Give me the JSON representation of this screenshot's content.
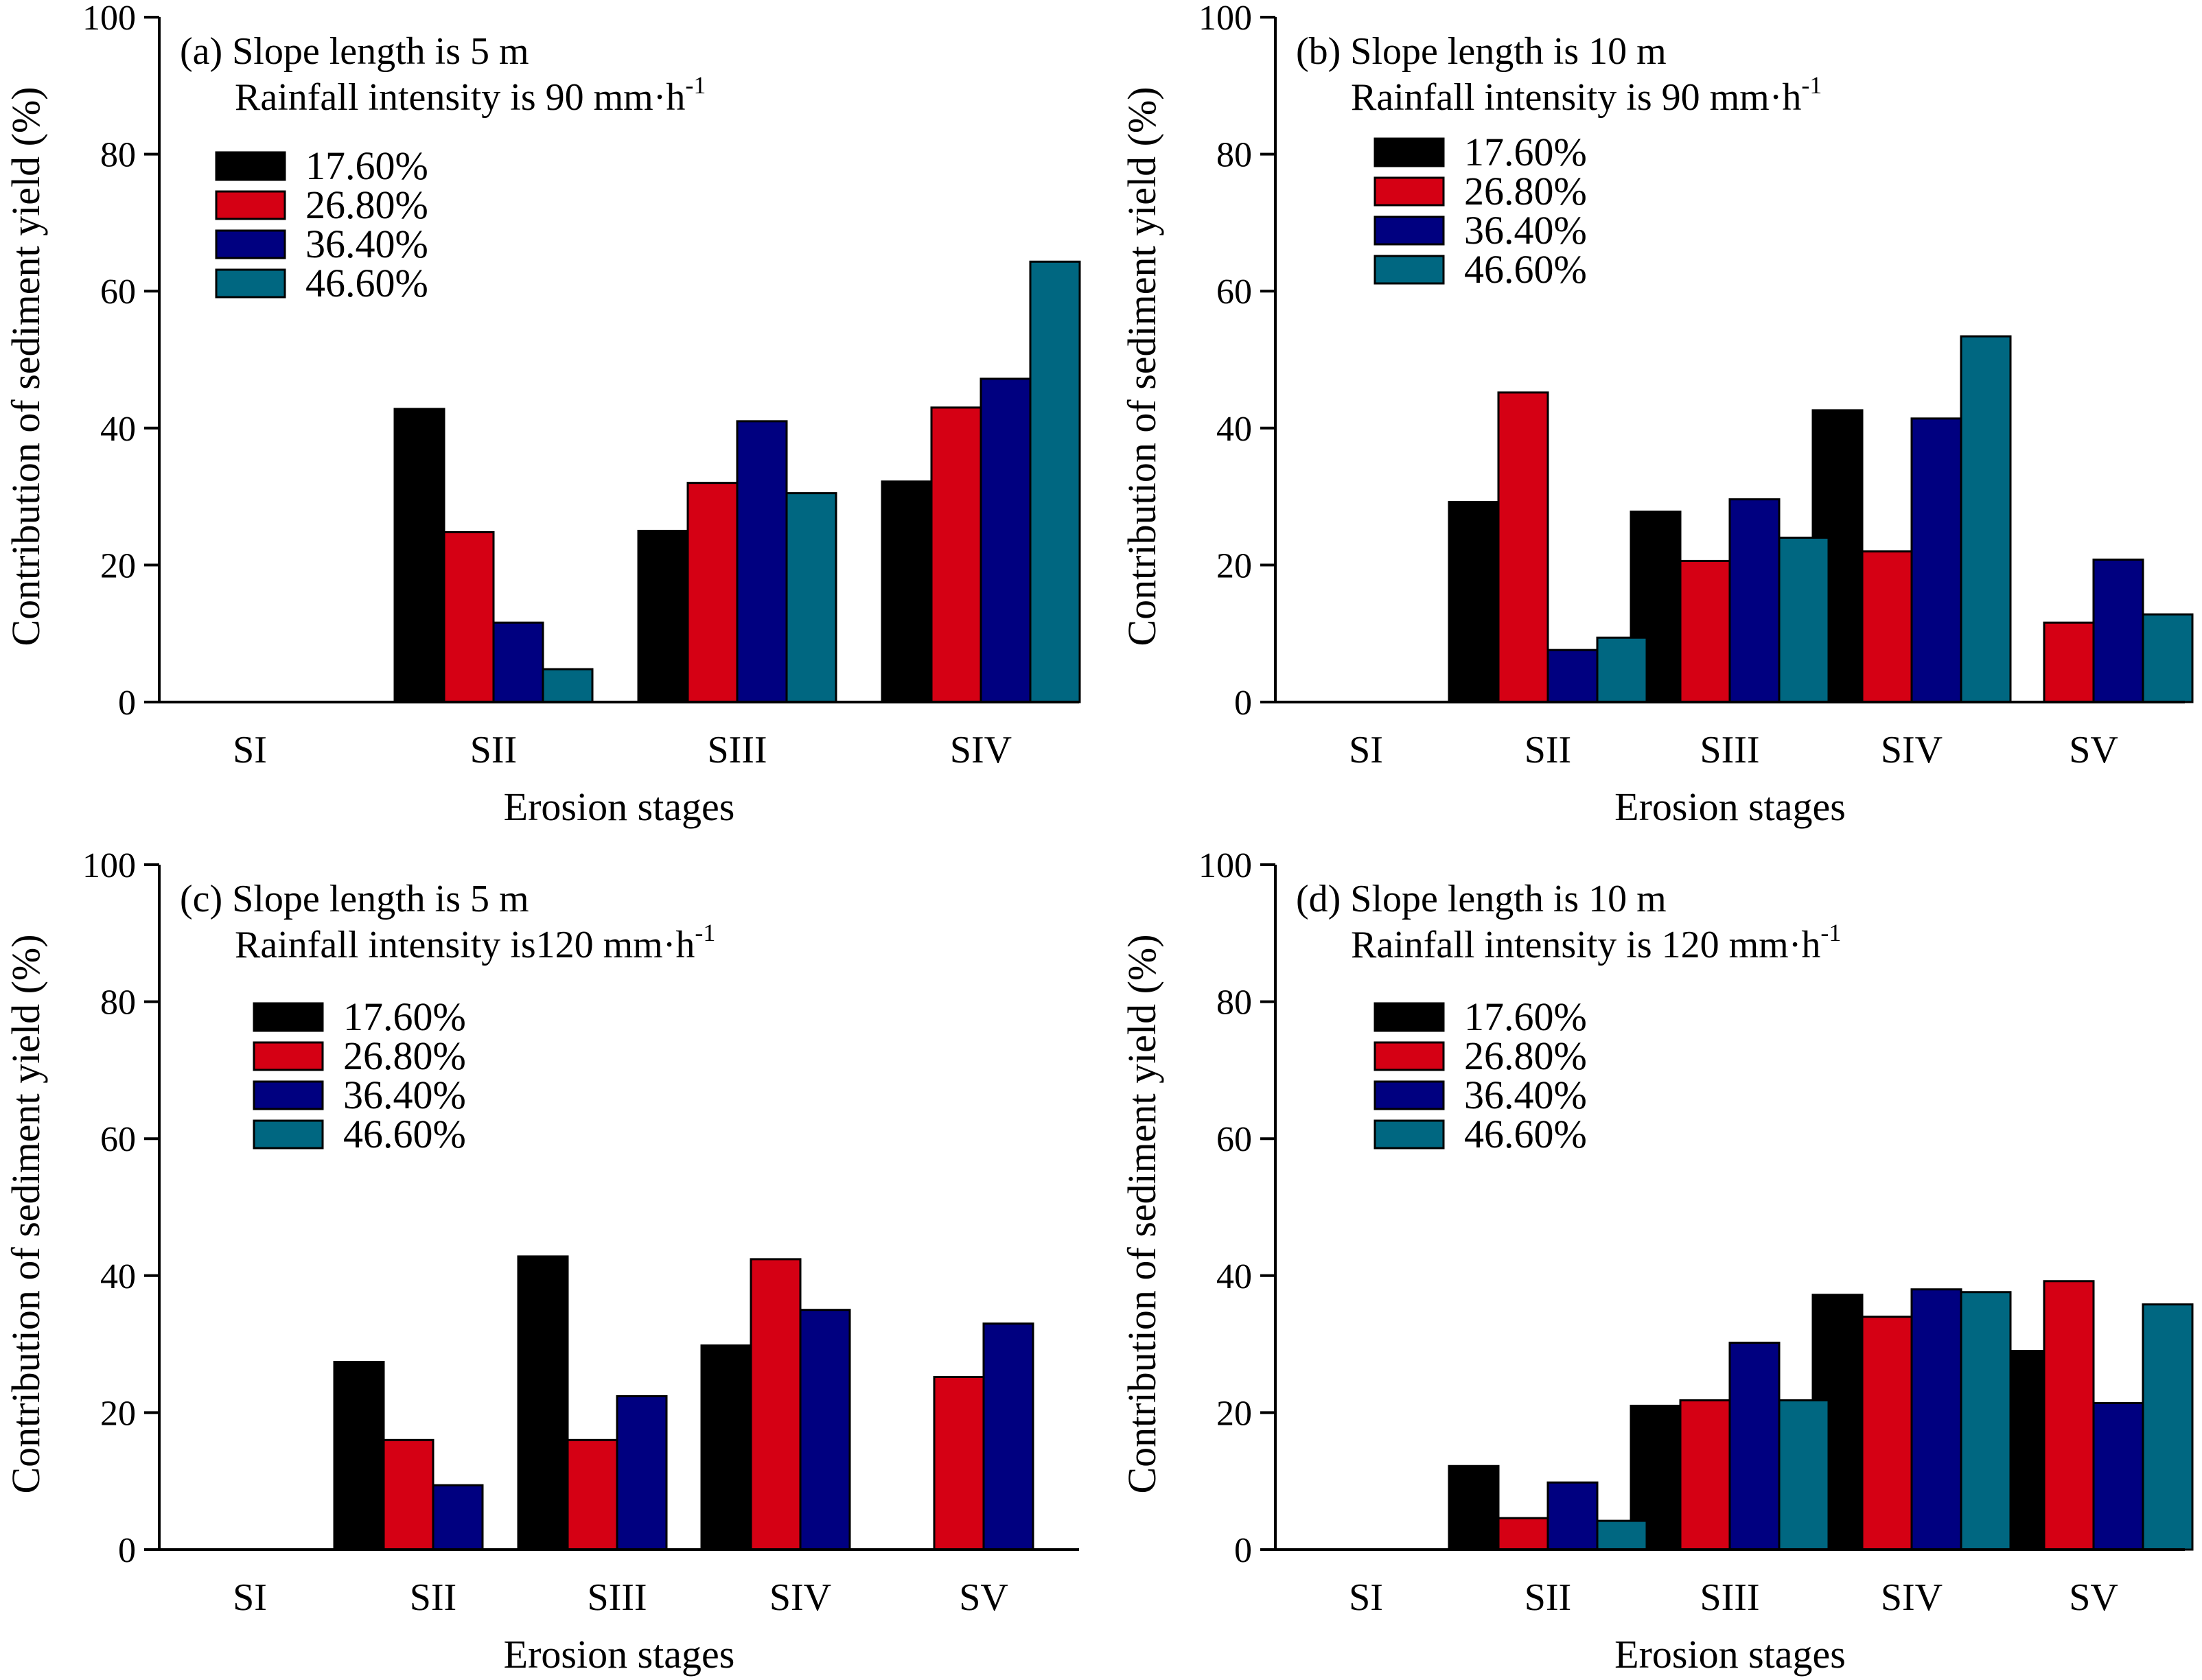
{
  "colors": {
    "17.60%": "#000000",
    "26.80%": "#d50014",
    "36.40%": "#000080",
    "46.60%": "#006781"
  },
  "chart_data": [
    {
      "type": "bar",
      "title_line1": "(a) Slope length is 5 m",
      "title_line2": "Rainfall intensity is 90 mm·h",
      "title_sup": "-1",
      "xlabel": "Erosion stages",
      "ylabel": "Contribution of sediment yield (%)",
      "ylim": [
        0,
        100
      ],
      "yticks": [
        0,
        20,
        40,
        60,
        80,
        100
      ],
      "categories": [
        "SI",
        "SII",
        "SIII",
        "SIV"
      ],
      "legend": [
        "17.60%",
        "26.80%",
        "36.40%",
        "46.60%"
      ],
      "series": [
        {
          "name": "17.60%",
          "values": [
            0,
            42.8,
            25.0,
            32.2
          ]
        },
        {
          "name": "26.80%",
          "values": [
            0,
            24.8,
            32.0,
            43.0
          ]
        },
        {
          "name": "36.40%",
          "values": [
            0,
            11.6,
            41.0,
            47.2
          ]
        },
        {
          "name": "46.60%",
          "values": [
            0,
            4.8,
            30.5,
            64.3
          ]
        }
      ]
    },
    {
      "type": "bar",
      "title_line1": "(b) Slope length is 10 m",
      "title_line2": "Rainfall intensity is 90 mm·h",
      "title_sup": "-1",
      "xlabel": "Erosion stages",
      "ylabel": "Contribution of sediment yield (%)",
      "ylim": [
        0,
        100
      ],
      "yticks": [
        0,
        20,
        40,
        60,
        80,
        100
      ],
      "categories": [
        "SI",
        "SII",
        "SIII",
        "SIV",
        "SV"
      ],
      "legend": [
        "17.60%",
        "26.80%",
        "36.40%",
        "46.60%"
      ],
      "series": [
        {
          "name": "17.60%",
          "values": [
            0,
            29.2,
            27.8,
            42.6,
            0
          ]
        },
        {
          "name": "26.80%",
          "values": [
            0,
            45.2,
            20.6,
            22.0,
            11.6
          ]
        },
        {
          "name": "36.40%",
          "values": [
            0,
            7.6,
            29.6,
            41.4,
            20.8
          ]
        },
        {
          "name": "46.60%",
          "values": [
            0,
            9.4,
            24.0,
            53.4,
            12.8
          ]
        }
      ]
    },
    {
      "type": "bar",
      "title_line1": "(c) Slope length is 5 m",
      "title_line2": "Rainfall intensity is120 mm·h",
      "title_sup": "-1",
      "xlabel": "Erosion stages",
      "ylabel": "Contribution of sediment yield (%)",
      "ylim": [
        0,
        100
      ],
      "yticks": [
        0,
        20,
        40,
        60,
        80,
        100
      ],
      "categories": [
        "SI",
        "SII",
        "SIII",
        "SIV",
        "SV"
      ],
      "legend": [
        "17.60%",
        "26.80%",
        "36.40%",
        "46.60%"
      ],
      "series": [
        {
          "name": "17.60%",
          "values": [
            0,
            27.4,
            42.8,
            29.8,
            0
          ]
        },
        {
          "name": "26.80%",
          "values": [
            0,
            16.0,
            16.0,
            42.4,
            25.2
          ]
        },
        {
          "name": "36.40%",
          "values": [
            0,
            9.4,
            22.4,
            35.0,
            33.0
          ]
        },
        {
          "name": "46.60%",
          "values": [
            0,
            0,
            0,
            0,
            0
          ]
        }
      ]
    },
    {
      "type": "bar",
      "title_line1": "(d) Slope length is 10 m",
      "title_line2": "Rainfall intensity is 120 mm·h",
      "title_sup": "-1",
      "xlabel": "Erosion stages",
      "ylabel": "Contribution of sediment yield (%)",
      "ylim": [
        0,
        100
      ],
      "yticks": [
        0,
        20,
        40,
        60,
        80,
        100
      ],
      "categories": [
        "SI",
        "SII",
        "SIII",
        "SIV",
        "SV"
      ],
      "legend": [
        "17.60%",
        "26.80%",
        "36.40%",
        "46.60%"
      ],
      "series": [
        {
          "name": "17.60%",
          "values": [
            0,
            12.2,
            21.0,
            37.2,
            29.0
          ]
        },
        {
          "name": "26.80%",
          "values": [
            0,
            4.6,
            21.8,
            34.0,
            39.2
          ]
        },
        {
          "name": "36.40%",
          "values": [
            0,
            9.8,
            30.2,
            38.0,
            21.4
          ]
        },
        {
          "name": "46.60%",
          "values": [
            0,
            4.2,
            21.8,
            37.6,
            35.8
          ]
        }
      ]
    }
  ]
}
